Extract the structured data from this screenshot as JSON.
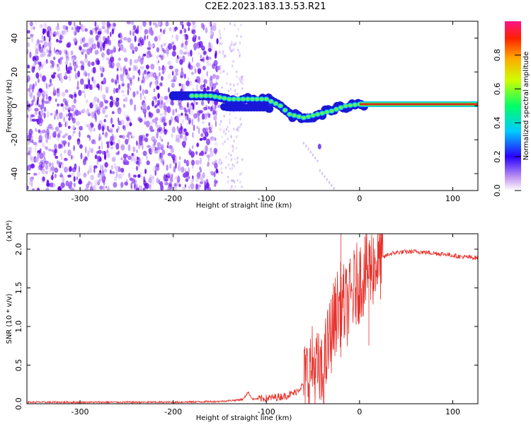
{
  "title": "C2E2.2023.183.13.53.R21",
  "chart_data": [
    {
      "type": "heatmap",
      "xlabel": "Height of straight line (km)",
      "ylabel": "Frequency (Hz)",
      "xlim": [
        -357,
        127
      ],
      "ylim": [
        -50,
        50
      ],
      "xticks": [
        -300,
        -200,
        -100,
        0,
        100
      ],
      "yticks": [
        -40,
        -20,
        0,
        20,
        40
      ],
      "colorbar": {
        "label": "Normalized spectral amplitude",
        "range": [
          0,
          1
        ],
        "ticks": [
          0.0,
          0.2,
          0.4,
          0.6,
          0.8
        ],
        "tick_labels": [
          "0.0",
          "0.2",
          "0.4",
          "0.6",
          "0.8"
        ]
      },
      "ridge": [
        {
          "x": -200,
          "y": 6
        },
        {
          "x": -180,
          "y": 6
        },
        {
          "x": -160,
          "y": 6
        },
        {
          "x": -140,
          "y": 4
        },
        {
          "x": -120,
          "y": 4
        },
        {
          "x": -100,
          "y": 4
        },
        {
          "x": -85,
          "y": 0
        },
        {
          "x": -75,
          "y": -5
        },
        {
          "x": -60,
          "y": -7
        },
        {
          "x": -45,
          "y": -5
        },
        {
          "x": -30,
          "y": -3
        },
        {
          "x": -15,
          "y": 0
        },
        {
          "x": 0,
          "y": 1
        },
        {
          "x": 20,
          "y": 0
        },
        {
          "x": 127,
          "y": 0
        }
      ]
    },
    {
      "type": "line",
      "xlabel": "Height of straight line (km)",
      "ylabel": "SNR (10 * v/v)",
      "y_multiplier_label": "(x10⁴)",
      "xlim": [
        -357,
        127
      ],
      "ylim": [
        0,
        2.2
      ],
      "xticks": [
        -300,
        -200,
        -100,
        0,
        100
      ],
      "yticks": [
        0.0,
        0.5,
        1.0,
        1.5,
        2.0
      ],
      "ytick_labels": [
        "0.0",
        "0.5",
        "1.0",
        "1.5",
        "2.0"
      ],
      "color": "#e8322c",
      "series": [
        {
          "x": [
            -357,
            -300,
            -250,
            -200,
            -150,
            -130,
            -125,
            -120,
            -115,
            -100,
            -80,
            -70,
            -60,
            -55,
            -50,
            -45,
            -40,
            -35,
            -30,
            -25,
            -20,
            -15,
            -10,
            -5,
            0,
            10,
            20,
            30,
            40,
            60,
            80,
            95,
            100,
            110,
            127
          ],
          "y": [
            0.02,
            0.02,
            0.02,
            0.02,
            0.03,
            0.05,
            0.06,
            0.15,
            0.06,
            0.07,
            0.1,
            0.14,
            0.25,
            0.4,
            0.5,
            0.42,
            0.3,
            0.7,
            0.95,
            1.2,
            1.3,
            1.25,
            1.35,
            1.5,
            1.6,
            1.75,
            1.85,
            1.93,
            1.96,
            1.97,
            1.95,
            1.93,
            1.92,
            1.9,
            1.89
          ]
        }
      ]
    }
  ]
}
